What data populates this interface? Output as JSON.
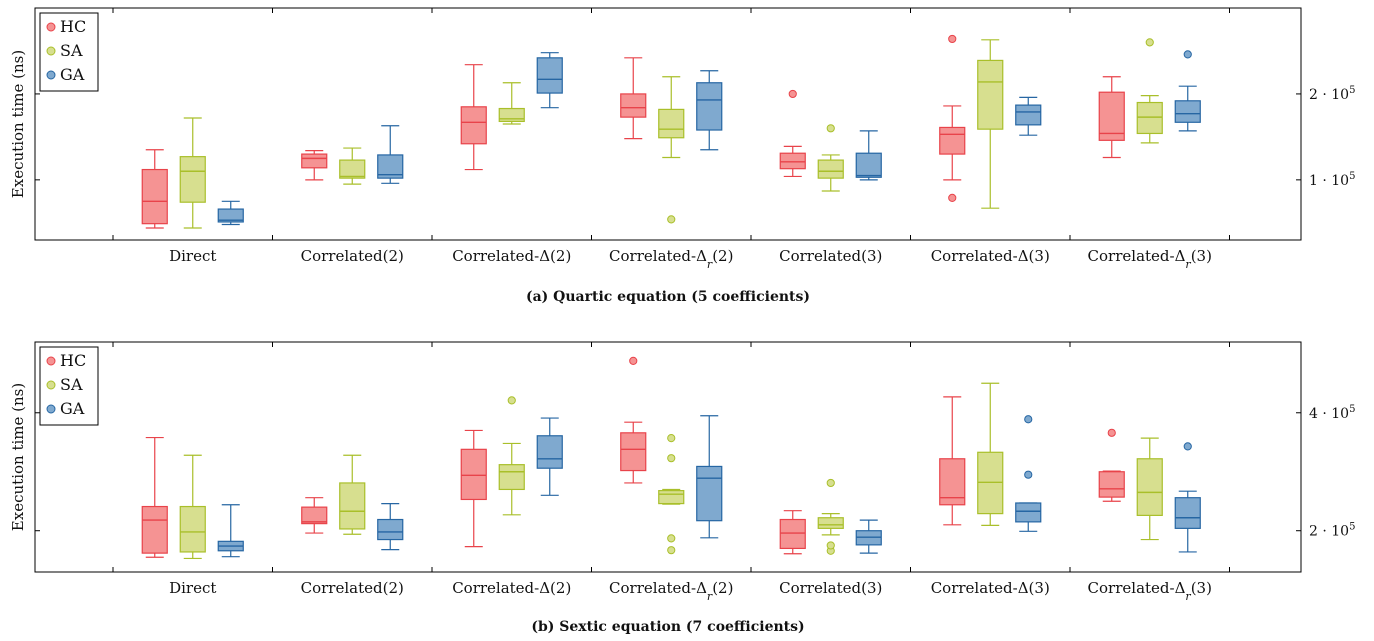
{
  "colors": {
    "HC": {
      "fill": "#f59393",
      "stroke": "#e8434a"
    },
    "SA": {
      "fill": "#d7df8f",
      "stroke": "#a9bf2a"
    },
    "GA": {
      "fill": "#7fa9cf",
      "stroke": "#2666a3"
    }
  },
  "chart_data": [
    {
      "type": "box",
      "caption": "(a) Quartic equation (5 coefficients)",
      "ylabel": "Execution time (ns)",
      "ylim": [
        30000,
        300000
      ],
      "yticks": [
        {
          "value": 100000,
          "label_base": "1 · 10",
          "label_exp": "5"
        },
        {
          "value": 200000,
          "label_base": "2 · 10",
          "label_exp": "5"
        }
      ],
      "legend": [
        "HC",
        "SA",
        "GA"
      ],
      "legend_position": "top-left",
      "categories": [
        "Direct",
        "Correlated(2)",
        "Correlated-Δ(2)",
        "Correlated-Δ_r(2)",
        "Correlated(3)",
        "Correlated-Δ(3)",
        "Correlated-Δ_r(3)"
      ],
      "series": [
        {
          "name": "HC",
          "boxes": [
            {
              "min": 44000,
              "q1": 49000,
              "median": 75000,
              "q3": 112000,
              "max": 135000,
              "outliers": []
            },
            {
              "min": 100000,
              "q1": 114000,
              "median": 125000,
              "q3": 130000,
              "max": 134000,
              "outliers": []
            },
            {
              "min": 112000,
              "q1": 142000,
              "median": 167000,
              "q3": 185000,
              "max": 234000,
              "outliers": []
            },
            {
              "min": 148000,
              "q1": 173000,
              "median": 184000,
              "q3": 200000,
              "max": 242000,
              "outliers": []
            },
            {
              "min": 104000,
              "q1": 113000,
              "median": 121000,
              "q3": 131000,
              "max": 139000,
              "outliers": [
                200000
              ]
            },
            {
              "min": 100000,
              "q1": 130000,
              "median": 153000,
              "q3": 161000,
              "max": 186000,
              "outliers": [
                79000,
                264000
              ]
            },
            {
              "min": 126000,
              "q1": 146000,
              "median": 154000,
              "q3": 202000,
              "max": 220000,
              "outliers": []
            }
          ]
        },
        {
          "name": "SA",
          "boxes": [
            {
              "min": 44000,
              "q1": 74000,
              "median": 110000,
              "q3": 127000,
              "max": 172000,
              "outliers": []
            },
            {
              "min": 95000,
              "q1": 102000,
              "median": 104000,
              "q3": 123000,
              "max": 137000,
              "outliers": []
            },
            {
              "min": 165000,
              "q1": 168000,
              "median": 171000,
              "q3": 183000,
              "max": 213000,
              "outliers": []
            },
            {
              "min": 126000,
              "q1": 149000,
              "median": 159000,
              "q3": 182000,
              "max": 220000,
              "outliers": [
                54000
              ]
            },
            {
              "min": 87000,
              "q1": 102000,
              "median": 110000,
              "q3": 123000,
              "max": 129000,
              "outliers": [
                160000
              ]
            },
            {
              "min": 67000,
              "q1": 159000,
              "median": 214000,
              "q3": 239000,
              "max": 263000,
              "outliers": []
            },
            {
              "min": 143000,
              "q1": 154000,
              "median": 173000,
              "q3": 190000,
              "max": 198000,
              "outliers": [
                260000
              ]
            }
          ]
        },
        {
          "name": "GA",
          "boxes": [
            {
              "min": 48000,
              "q1": 51000,
              "median": 53000,
              "q3": 66000,
              "max": 75000,
              "outliers": []
            },
            {
              "min": 96000,
              "q1": 102000,
              "median": 106000,
              "q3": 129000,
              "max": 163000,
              "outliers": []
            },
            {
              "min": 184000,
              "q1": 201000,
              "median": 217000,
              "q3": 242000,
              "max": 248000,
              "outliers": []
            },
            {
              "min": 135000,
              "q1": 158000,
              "median": 193000,
              "q3": 213000,
              "max": 227000,
              "outliers": []
            },
            {
              "min": 100000,
              "q1": 103000,
              "median": 105000,
              "q3": 131000,
              "max": 157000,
              "outliers": []
            },
            {
              "min": 152000,
              "q1": 164000,
              "median": 179000,
              "q3": 187000,
              "max": 196000,
              "outliers": []
            },
            {
              "min": 157000,
              "q1": 167000,
              "median": 177000,
              "q3": 192000,
              "max": 209000,
              "outliers": [
                246000
              ]
            }
          ]
        }
      ]
    },
    {
      "type": "box",
      "caption": "(b) Sextic equation (7 coefficients)",
      "ylabel": "Execution time (ns)",
      "ylim": [
        130000,
        520000
      ],
      "yticks": [
        {
          "value": 200000,
          "label_base": "2 · 10",
          "label_exp": "5"
        },
        {
          "value": 400000,
          "label_base": "4 · 10",
          "label_exp": "5"
        }
      ],
      "legend": [
        "HC",
        "SA",
        "GA"
      ],
      "legend_position": "top-left",
      "categories": [
        "Direct",
        "Correlated(2)",
        "Correlated-Δ(2)",
        "Correlated-Δ_r(2)",
        "Correlated(3)",
        "Correlated-Δ(3)",
        "Correlated-Δ_r(3)"
      ],
      "series": [
        {
          "name": "HC",
          "boxes": [
            {
              "min": 155000,
              "q1": 162000,
              "median": 218000,
              "q3": 241000,
              "max": 358000,
              "outliers": []
            },
            {
              "min": 196000,
              "q1": 212000,
              "median": 215000,
              "q3": 240000,
              "max": 256000,
              "outliers": []
            },
            {
              "min": 173000,
              "q1": 253000,
              "median": 294000,
              "q3": 338000,
              "max": 370000,
              "outliers": []
            },
            {
              "min": 281000,
              "q1": 302000,
              "median": 338000,
              "q3": 366000,
              "max": 384000,
              "outliers": [
                488000
              ]
            },
            {
              "min": 161000,
              "q1": 170000,
              "median": 196000,
              "q3": 219000,
              "max": 234000,
              "outliers": []
            },
            {
              "min": 210000,
              "q1": 244000,
              "median": 256000,
              "q3": 322000,
              "max": 427000,
              "outliers": []
            },
            {
              "min": 250000,
              "q1": 257000,
              "median": 271000,
              "q3": 300000,
              "max": 301000,
              "outliers": [
                366000
              ]
            }
          ]
        },
        {
          "name": "SA",
          "boxes": [
            {
              "min": 153000,
              "q1": 164000,
              "median": 198000,
              "q3": 241000,
              "max": 328000,
              "outliers": []
            },
            {
              "min": 194000,
              "q1": 203000,
              "median": 233000,
              "q3": 281000,
              "max": 328000,
              "outliers": []
            },
            {
              "min": 227000,
              "q1": 270000,
              "median": 300000,
              "q3": 312000,
              "max": 348000,
              "outliers": [
                421000
              ]
            },
            {
              "min": 245000,
              "q1": 246000,
              "median": 262000,
              "q3": 268000,
              "max": 270000,
              "outliers": [
                167000,
                187000,
                323000,
                357000
              ]
            },
            {
              "min": 193000,
              "q1": 204000,
              "median": 210000,
              "q3": 222000,
              "max": 229000,
              "outliers": [
                166000,
                175000,
                281000
              ]
            },
            {
              "min": 209000,
              "q1": 229000,
              "median": 282000,
              "q3": 333000,
              "max": 450000,
              "outliers": []
            },
            {
              "min": 185000,
              "q1": 226000,
              "median": 265000,
              "q3": 322000,
              "max": 357000,
              "outliers": []
            }
          ]
        },
        {
          "name": "GA",
          "boxes": [
            {
              "min": 156000,
              "q1": 166000,
              "median": 174000,
              "q3": 182000,
              "max": 244000,
              "outliers": []
            },
            {
              "min": 168000,
              "q1": 185000,
              "median": 198000,
              "q3": 219000,
              "max": 246000,
              "outliers": []
            },
            {
              "min": 260000,
              "q1": 306000,
              "median": 322000,
              "q3": 361000,
              "max": 391000,
              "outliers": []
            },
            {
              "min": 188000,
              "q1": 217000,
              "median": 289000,
              "q3": 309000,
              "max": 395000,
              "outliers": []
            },
            {
              "min": 162000,
              "q1": 176000,
              "median": 189000,
              "q3": 200000,
              "max": 218000,
              "outliers": []
            },
            {
              "min": 199000,
              "q1": 215000,
              "median": 233000,
              "q3": 247000,
              "max": 247000,
              "outliers": [
                295000,
                389000
              ]
            },
            {
              "min": 164000,
              "q1": 204000,
              "median": 222000,
              "q3": 256000,
              "max": 267000,
              "outliers": [
                343000
              ]
            }
          ]
        }
      ]
    }
  ]
}
